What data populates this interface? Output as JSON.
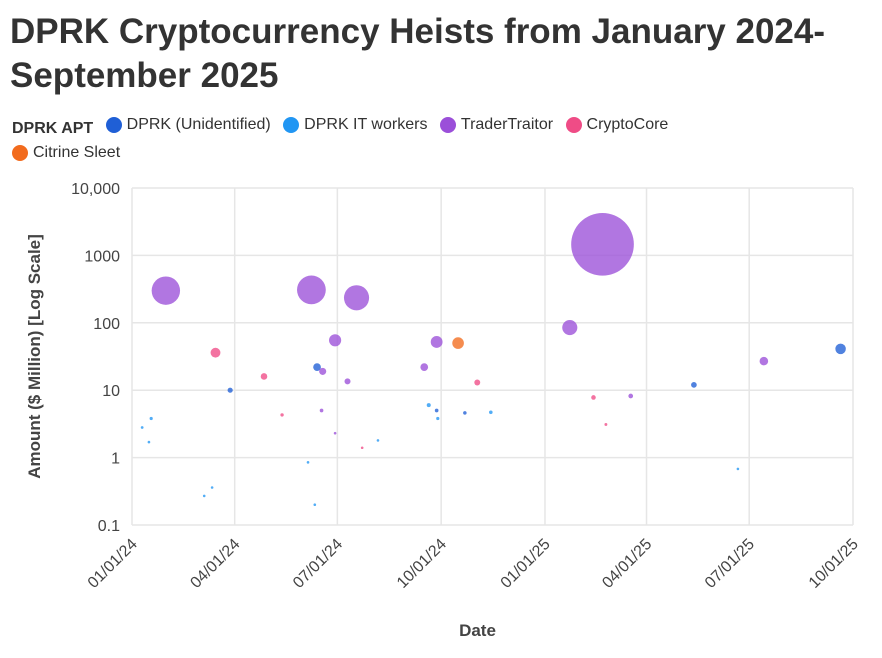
{
  "chart_data": {
    "type": "bubble-scatter",
    "title": "DPRK Cryptocurrency Heists from January 2024-September 2025",
    "xlabel": "Date",
    "ylabel": "Amount ($ Million) [Log Scale]",
    "y_scale": "log",
    "ylim": [
      0.1,
      10000
    ],
    "y_ticks": [
      {
        "value": 0.1,
        "label": "0.1"
      },
      {
        "value": 1,
        "label": "1"
      },
      {
        "value": 10,
        "label": "10"
      },
      {
        "value": 100,
        "label": "100"
      },
      {
        "value": 1000,
        "label": "1000"
      },
      {
        "value": 10000,
        "label": "10,000"
      }
    ],
    "xlim": [
      "2024-01-01",
      "2025-10-01"
    ],
    "x_ticks": [
      {
        "value": "2024-01-01",
        "label": "01/01/24"
      },
      {
        "value": "2024-04-01",
        "label": "04/01/24"
      },
      {
        "value": "2024-07-01",
        "label": "07/01/24"
      },
      {
        "value": "2024-10-01",
        "label": "10/01/24"
      },
      {
        "value": "2025-01-01",
        "label": "01/01/25"
      },
      {
        "value": "2025-04-01",
        "label": "04/01/25"
      },
      {
        "value": "2025-07-01",
        "label": "07/01/25"
      },
      {
        "value": "2025-10-01",
        "label": "10/01/25"
      }
    ],
    "grid": true,
    "legend": {
      "title": "DPRK APT",
      "position": "top-left",
      "entries": [
        {
          "name": "DPRK (Unidentified)",
          "color": "#1f5fd6"
        },
        {
          "name": "DPRK IT workers",
          "color": "#2196f3"
        },
        {
          "name": "TraderTraitor",
          "color": "#9b4fd9"
        },
        {
          "name": "CryptoCore",
          "color": "#ef4c86"
        },
        {
          "name": "Citrine Sleet",
          "color": "#f26b1d"
        }
      ]
    },
    "series": [
      {
        "name": "DPRK (Unidentified)",
        "color": "#1f5fd6",
        "points": [
          {
            "date": "2024-03-28",
            "value": 10
          },
          {
            "date": "2024-06-13",
            "value": 22
          },
          {
            "date": "2024-09-27",
            "value": 5
          },
          {
            "date": "2024-10-22",
            "value": 4.6
          },
          {
            "date": "2025-05-13",
            "value": 12
          },
          {
            "date": "2025-09-20",
            "value": 41
          }
        ]
      },
      {
        "name": "DPRK IT workers",
        "color": "#2196f3",
        "points": [
          {
            "date": "2024-01-10",
            "value": 2.8
          },
          {
            "date": "2024-01-16",
            "value": 1.7
          },
          {
            "date": "2024-01-18",
            "value": 3.8
          },
          {
            "date": "2024-03-05",
            "value": 0.27
          },
          {
            "date": "2024-03-12",
            "value": 0.36
          },
          {
            "date": "2024-06-05",
            "value": 0.85
          },
          {
            "date": "2024-06-11",
            "value": 0.2
          },
          {
            "date": "2024-08-06",
            "value": 1.8
          },
          {
            "date": "2024-09-20",
            "value": 6
          },
          {
            "date": "2024-09-28",
            "value": 3.8
          },
          {
            "date": "2024-11-14",
            "value": 4.7
          },
          {
            "date": "2025-06-21",
            "value": 0.68
          }
        ]
      },
      {
        "name": "TraderTraitor",
        "color": "#9b4fd9",
        "points": [
          {
            "date": "2024-01-31",
            "value": 300
          },
          {
            "date": "2024-06-08",
            "value": 308
          },
          {
            "date": "2024-06-18",
            "value": 19
          },
          {
            "date": "2024-06-17",
            "value": 5
          },
          {
            "date": "2024-06-29",
            "value": 55
          },
          {
            "date": "2024-06-29",
            "value": 2.3
          },
          {
            "date": "2024-07-10",
            "value": 13.5
          },
          {
            "date": "2024-07-18",
            "value": 235
          },
          {
            "date": "2024-09-16",
            "value": 22
          },
          {
            "date": "2024-09-27",
            "value": 52
          },
          {
            "date": "2025-01-23",
            "value": 85
          },
          {
            "date": "2025-02-21",
            "value": 1460
          },
          {
            "date": "2025-03-18",
            "value": 8.2
          },
          {
            "date": "2025-07-14",
            "value": 27
          }
        ]
      },
      {
        "name": "CryptoCore",
        "color": "#ef4c86",
        "points": [
          {
            "date": "2024-03-15",
            "value": 36
          },
          {
            "date": "2024-04-27",
            "value": 16
          },
          {
            "date": "2024-05-13",
            "value": 4.3
          },
          {
            "date": "2024-07-23",
            "value": 1.4
          },
          {
            "date": "2024-11-02",
            "value": 13
          },
          {
            "date": "2025-02-13",
            "value": 7.8
          },
          {
            "date": "2025-02-24",
            "value": 3.1
          }
        ]
      },
      {
        "name": "Citrine Sleet",
        "color": "#f26b1d",
        "points": [
          {
            "date": "2024-10-16",
            "value": 50
          }
        ]
      }
    ]
  }
}
